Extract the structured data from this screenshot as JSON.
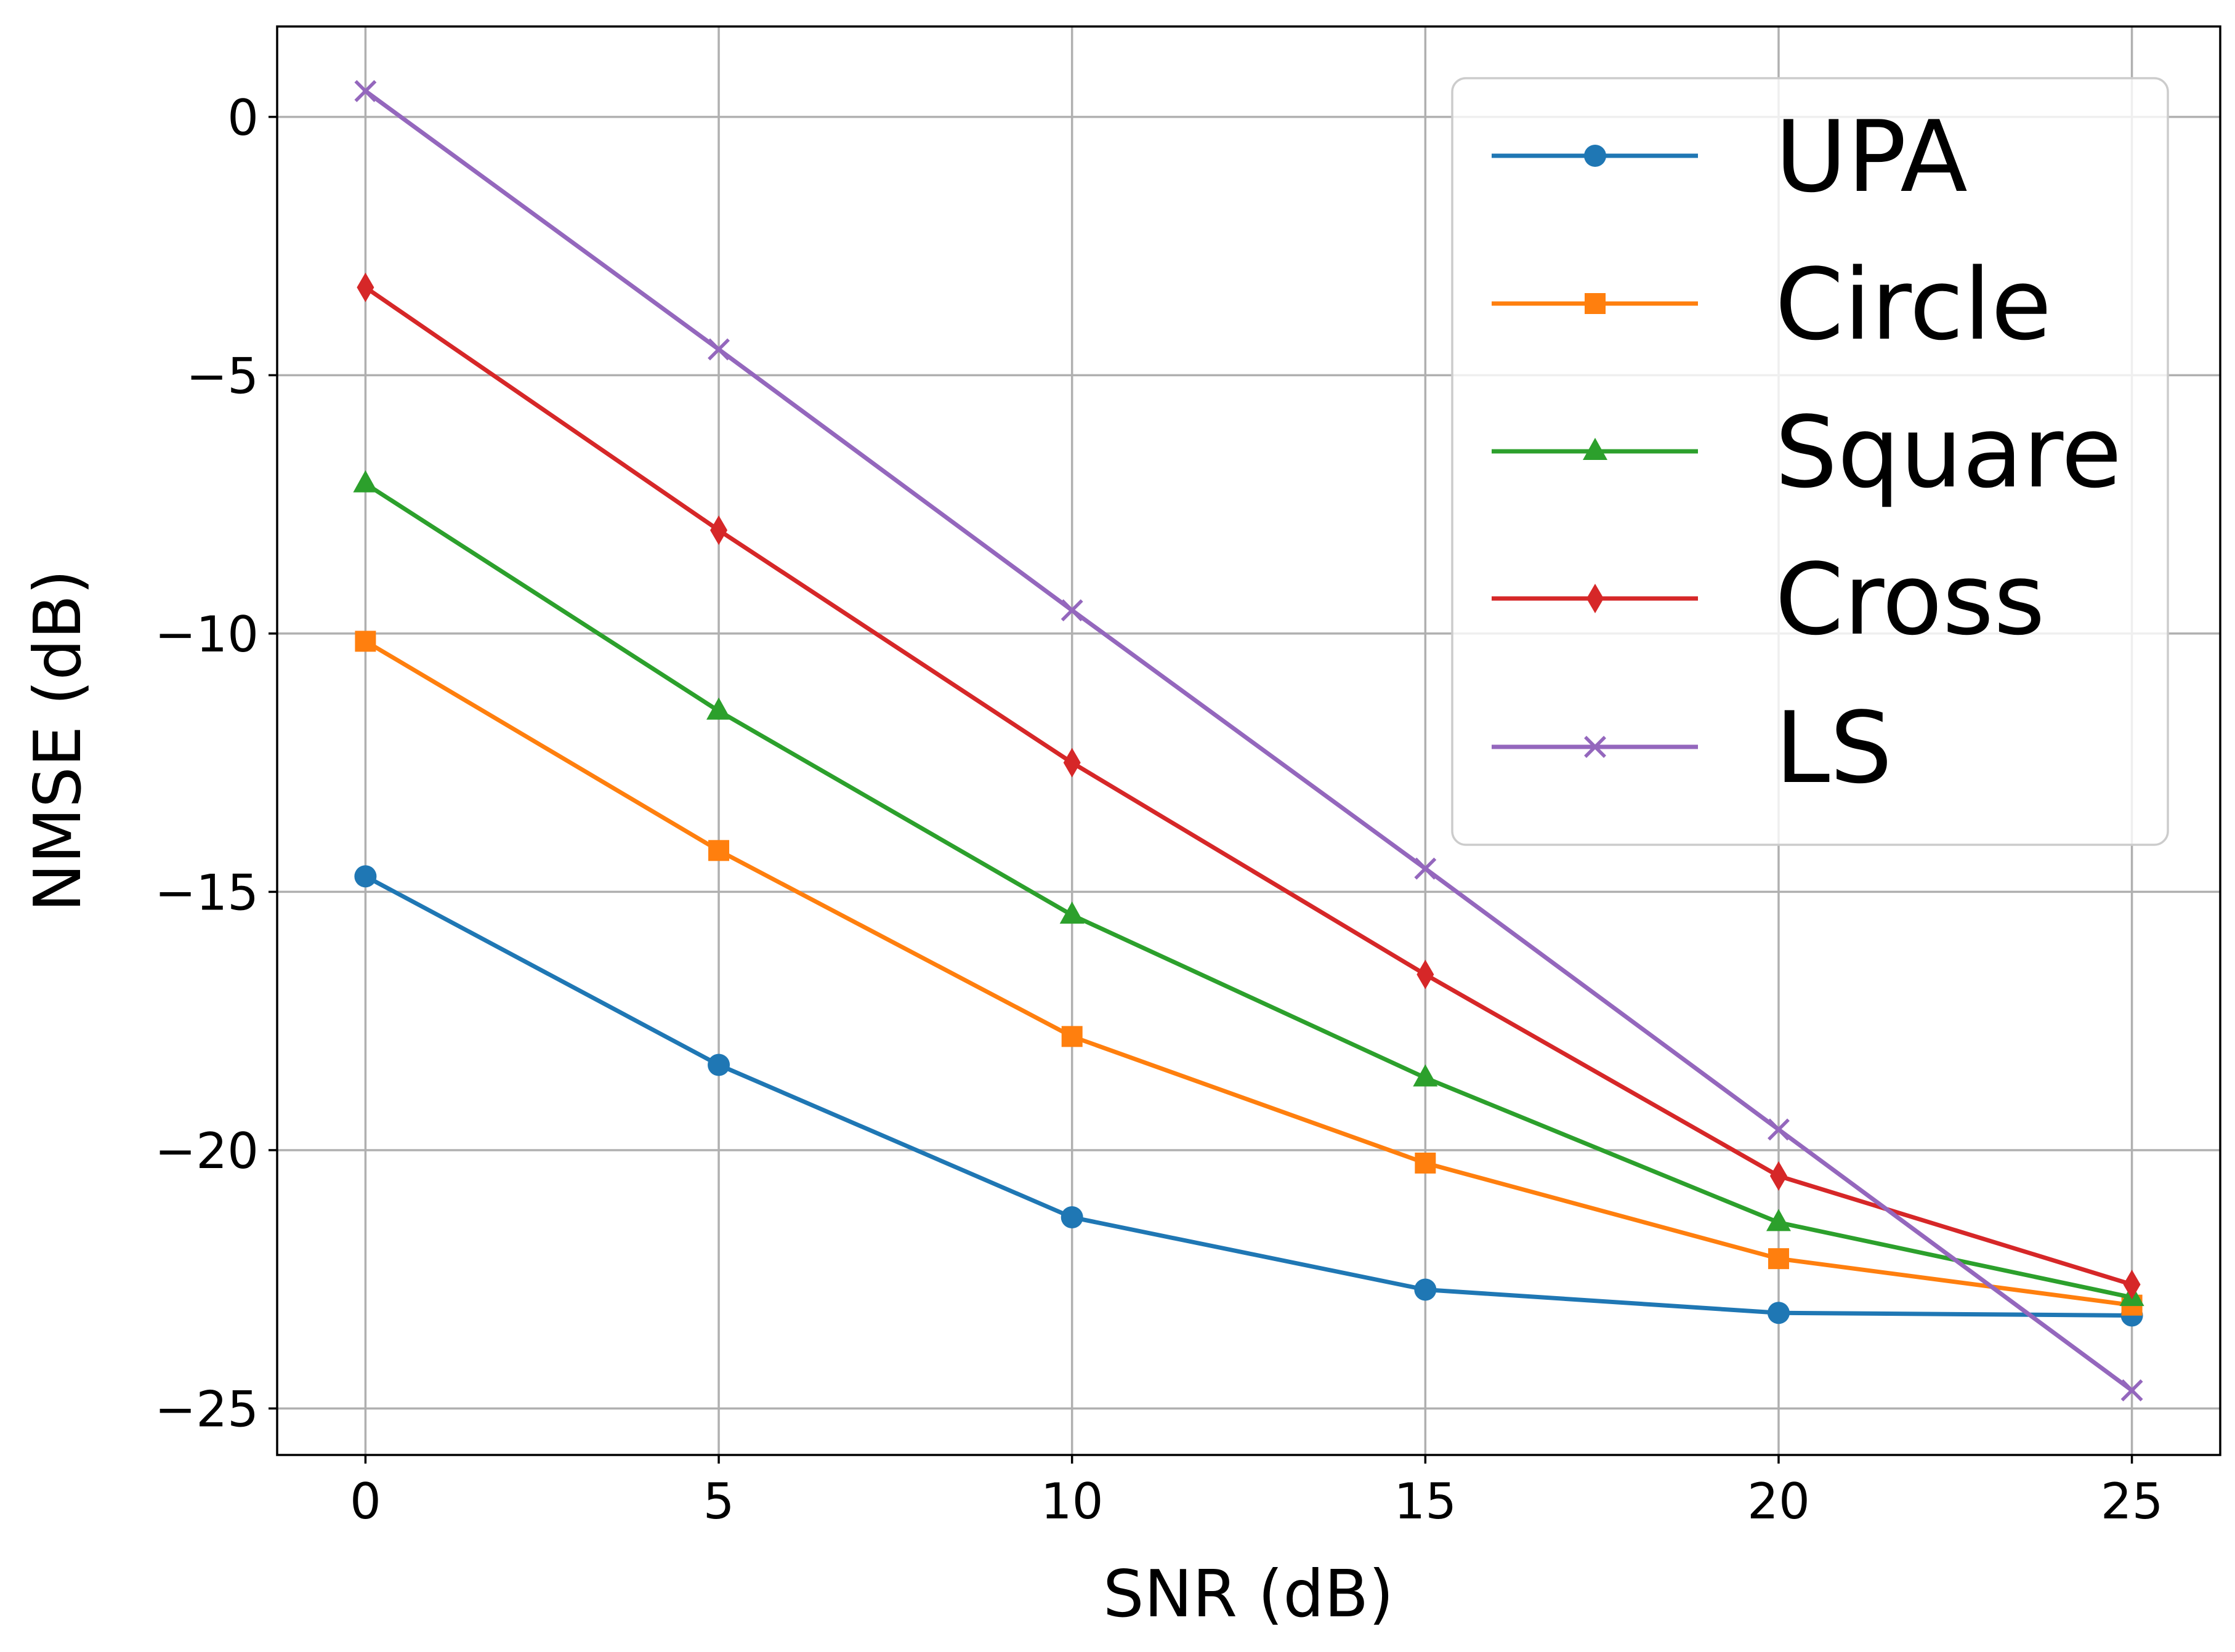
{
  "chart_data": {
    "type": "line",
    "title": "",
    "xlabel": "SNR (dB)",
    "ylabel": "NMSE (dB)",
    "x": [
      0,
      5,
      10,
      15,
      20,
      25
    ],
    "xticks": [
      0,
      5,
      10,
      15,
      20,
      25
    ],
    "xtick_labels": [
      "0",
      "5",
      "10",
      "15",
      "20",
      "25"
    ],
    "yticks": [
      0,
      -5,
      -10,
      -15,
      -20,
      -25
    ],
    "ytick_labels": [
      "0",
      "−5",
      "−10",
      "−15",
      "−20",
      "−25"
    ],
    "xlim": [
      -1.25,
      26.25
    ],
    "ylim": [
      -25.9,
      1.75
    ],
    "grid": true,
    "legend_position": "top-right",
    "series": [
      {
        "name": "UPA",
        "color": "#1f77b4",
        "marker": "circle",
        "values": [
          -14.7,
          -18.35,
          -21.3,
          -22.7,
          -23.15,
          -23.2
        ]
      },
      {
        "name": "Circle",
        "color": "#ff7f0e",
        "marker": "square",
        "values": [
          -10.15,
          -14.2,
          -17.8,
          -20.25,
          -22.1,
          -23.0
        ]
      },
      {
        "name": "Square",
        "color": "#2ca02c",
        "marker": "triangle",
        "values": [
          -7.1,
          -11.5,
          -15.45,
          -18.6,
          -21.4,
          -22.85
        ]
      },
      {
        "name": "Cross",
        "color": "#d62728",
        "marker": "diamond",
        "values": [
          -3.3,
          -8.0,
          -12.5,
          -16.6,
          -20.5,
          -22.6
        ]
      },
      {
        "name": "LS",
        "color": "#9467bd",
        "marker": "x",
        "values": [
          0.5,
          -4.5,
          -9.55,
          -14.55,
          -19.6,
          -24.65
        ]
      }
    ]
  }
}
